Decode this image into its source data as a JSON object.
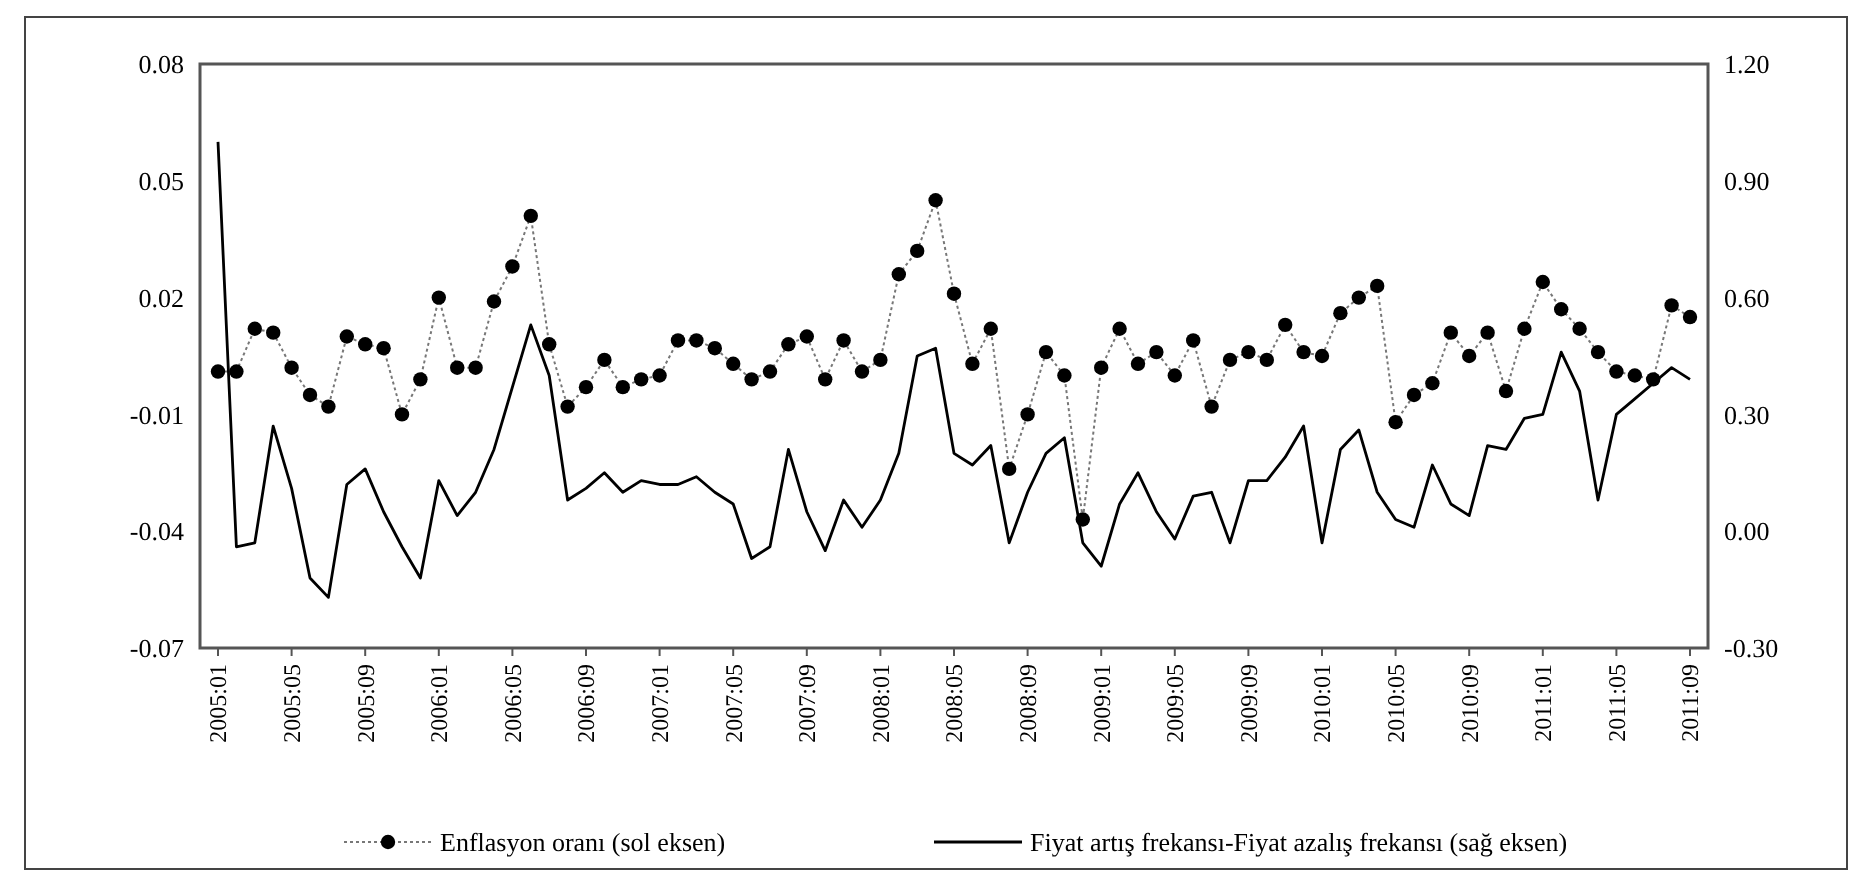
{
  "chart_data": {
    "type": "line",
    "categories": [
      "2005:01",
      null,
      null,
      null,
      "2005:05",
      null,
      null,
      null,
      "2005:09",
      null,
      null,
      null,
      "2006:01",
      null,
      null,
      null,
      "2006:05",
      null,
      null,
      null,
      "2006:09",
      null,
      null,
      null,
      "2007:01",
      null,
      null,
      null,
      "2007:05",
      null,
      null,
      null,
      "2007:09",
      null,
      null,
      null,
      "2008:01",
      null,
      null,
      null,
      "2008:05",
      null,
      null,
      null,
      "2008:09",
      null,
      null,
      null,
      "2009:01",
      null,
      null,
      null,
      "2009:05",
      null,
      null,
      null,
      "2009:09",
      null,
      null,
      null,
      "2010:01",
      null,
      null,
      null,
      "2010:05",
      null,
      null,
      null,
      "2010:09",
      null,
      null,
      null,
      "2011:01",
      null,
      null,
      null,
      "2011:05",
      null,
      null,
      null,
      "2011:09"
    ],
    "series": [
      {
        "name": "Enflasyon oranı (sol eksen)",
        "color": "#000000",
        "marker": "circle",
        "line_style": "dotted",
        "values": [
          0.001,
          0.001,
          0.012,
          0.011,
          0.002,
          -0.005,
          -0.008,
          0.01,
          0.008,
          0.007,
          -0.01,
          -0.001,
          0.02,
          0.002,
          0.002,
          0.019,
          0.028,
          0.041,
          0.008,
          -0.008,
          -0.003,
          0.004,
          -0.003,
          -0.001,
          0.0,
          0.009,
          0.009,
          0.007,
          0.003,
          -0.001,
          0.001,
          0.008,
          0.01,
          -0.001,
          0.009,
          0.001,
          0.004,
          0.026,
          0.032,
          0.045,
          0.021,
          0.003,
          0.012,
          -0.024,
          -0.01,
          0.006,
          0.0,
          -0.037,
          0.002,
          0.012,
          0.003,
          0.006,
          0.0,
          0.009,
          -0.008,
          0.004,
          0.006,
          0.004,
          0.013,
          0.006,
          0.005,
          0.016,
          0.02,
          0.023,
          -0.012,
          -0.005,
          -0.002,
          0.011,
          0.005,
          0.011,
          -0.004,
          0.012,
          0.024,
          0.017,
          0.012,
          0.006,
          0.001,
          0.0,
          -0.001,
          0.018,
          0.015
        ]
      },
      {
        "name": "Fiyat artış frekansı-Fiyat azalış frekansı (sağ eksen)",
        "color": "#000000",
        "axis": "y2",
        "marker": "none",
        "line_style": "solid",
        "values": [
          1.0,
          -0.04,
          -0.03,
          0.27,
          0.11,
          -0.12,
          -0.17,
          0.12,
          0.16,
          0.05,
          -0.04,
          -0.12,
          0.13,
          0.04,
          0.1,
          0.21,
          0.37,
          0.53,
          0.4,
          0.08,
          0.11,
          0.15,
          0.1,
          0.13,
          0.12,
          0.12,
          0.14,
          0.1,
          0.07,
          -0.07,
          -0.04,
          0.21,
          0.05,
          -0.05,
          0.08,
          0.01,
          0.08,
          0.2,
          0.45,
          0.47,
          0.2,
          0.17,
          0.22,
          -0.03,
          0.1,
          0.2,
          0.24,
          -0.03,
          -0.09,
          0.07,
          0.15,
          0.05,
          -0.02,
          0.09,
          0.1,
          -0.03,
          0.13,
          0.13,
          0.19,
          0.27,
          -0.03,
          0.21,
          0.26,
          0.1,
          0.03,
          0.01,
          0.17,
          0.07,
          0.04,
          0.22,
          0.21,
          0.29,
          0.3,
          0.46,
          0.36,
          0.08,
          0.3,
          0.34,
          0.38,
          0.42,
          0.39
        ]
      }
    ],
    "ylim": [
      -0.07,
      0.08
    ],
    "yticks": [
      {
        "value": -0.07,
        "label": "-0.07"
      },
      {
        "value": -0.04,
        "label": "-0.04"
      },
      {
        "value": -0.01,
        "label": "-0.01"
      },
      {
        "value": 0.02,
        "label": "0.02"
      },
      {
        "value": 0.05,
        "label": "0.05"
      },
      {
        "value": 0.08,
        "label": "0.08"
      }
    ],
    "y2lim": [
      -0.3,
      1.2
    ],
    "y2ticks": [
      {
        "value": -0.3,
        "label": "-0.30"
      },
      {
        "value": 0,
        "label": "0.00"
      },
      {
        "value": 0.3,
        "label": "0.30"
      },
      {
        "value": 0.6,
        "label": "0.60"
      },
      {
        "value": 0.9,
        "label": "0.90"
      },
      {
        "value": 1.2,
        "label": "1.20"
      }
    ],
    "grid": false,
    "legend": "bottom"
  }
}
